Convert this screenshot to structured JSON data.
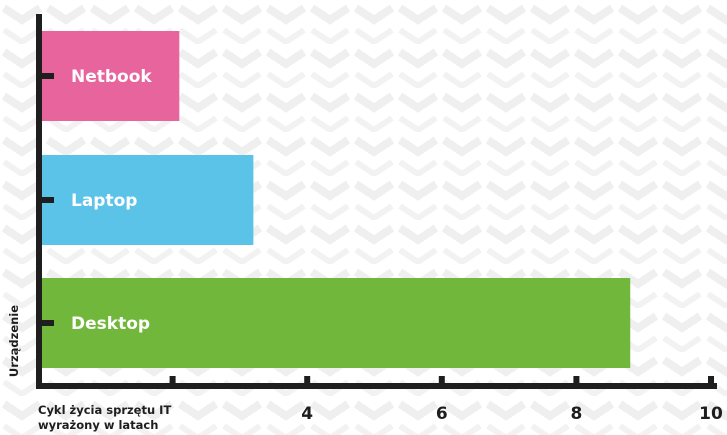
{
  "chart_data": {
    "type": "bar",
    "orientation": "horizontal",
    "categories": [
      "Netbook",
      "Laptop",
      "Desktop"
    ],
    "values": [
      2.1,
      3.2,
      8.8
    ],
    "colors": [
      "#e8649c",
      "#5bc2e8",
      "#71b73c"
    ],
    "xlabel_lines": [
      "Cykl życia sprzętu IT",
      "wyrażony w latach"
    ],
    "ylabel": "Urządzenie",
    "x_ticks": [
      2,
      4,
      6,
      8,
      10
    ],
    "x_tick_labels": [
      "",
      "4",
      "6",
      "8",
      "10"
    ],
    "xlim": [
      0,
      10
    ],
    "grid": false,
    "legend": "none",
    "background_pattern": "light-grey-chevrons"
  }
}
